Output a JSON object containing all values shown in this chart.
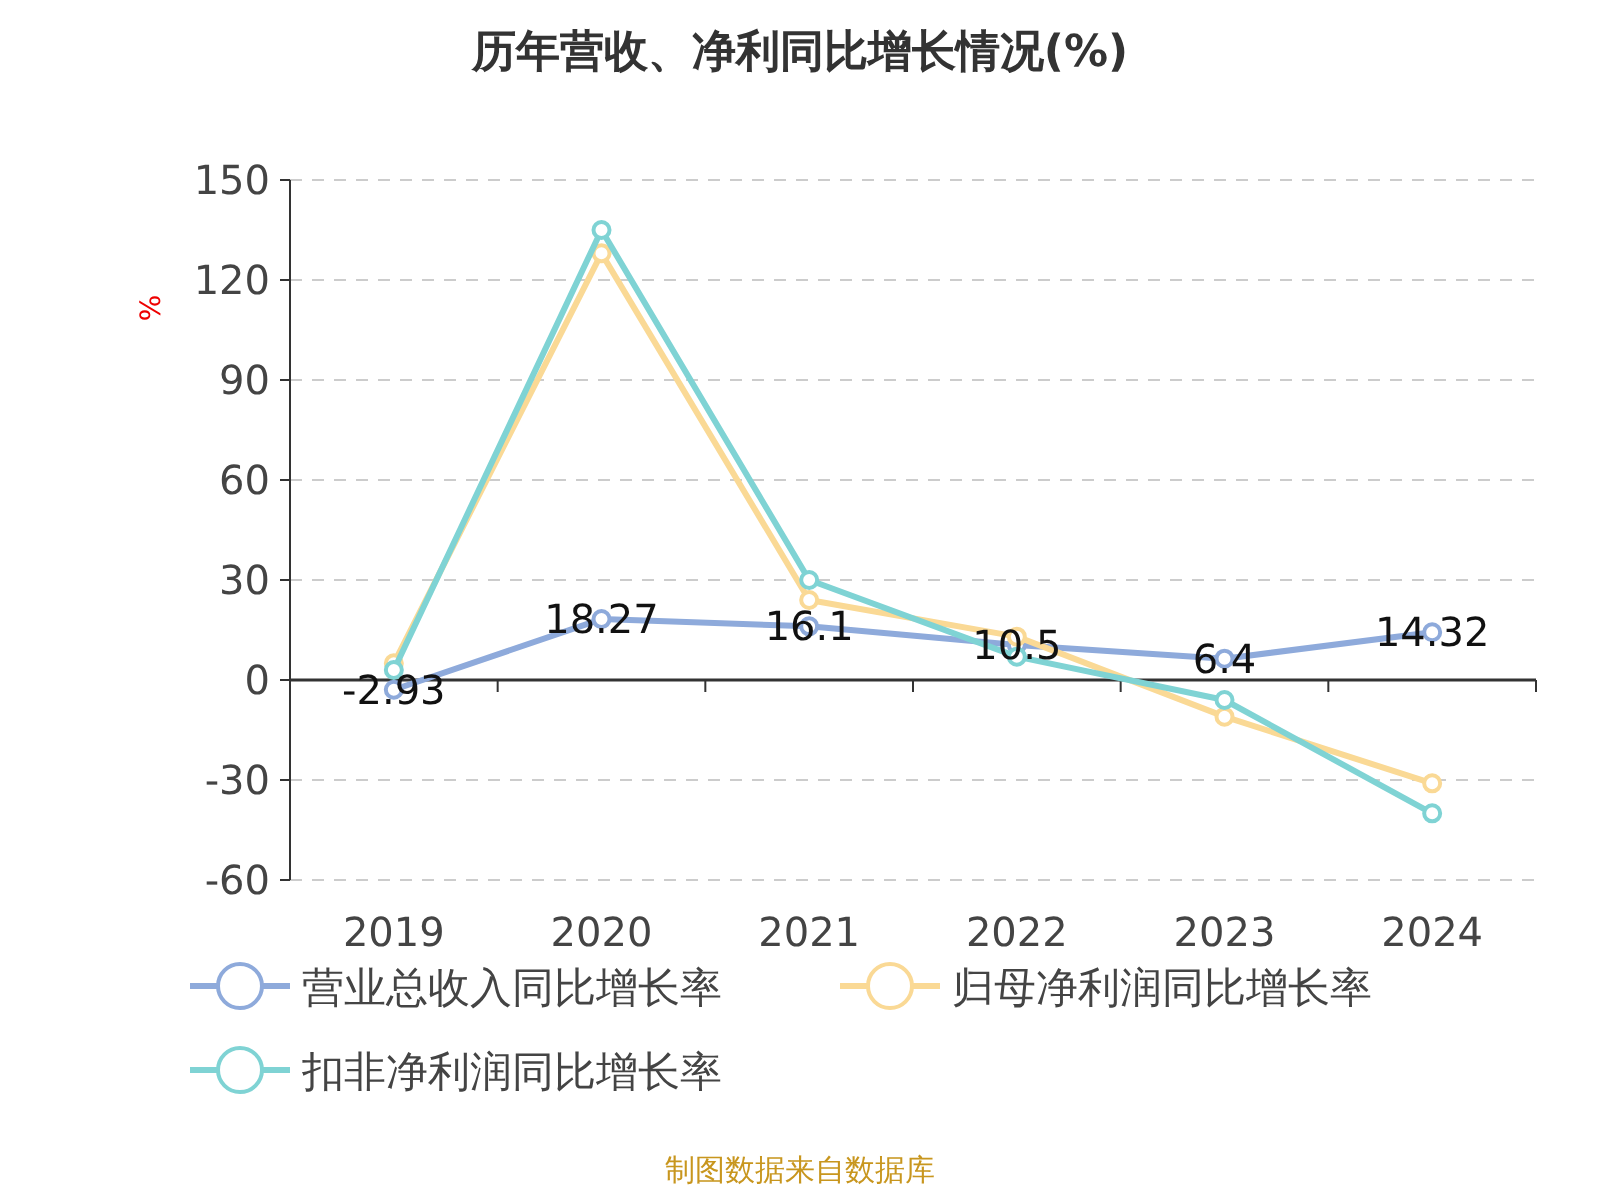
{
  "chart_data": {
    "type": "line",
    "title": "历年营收、净利同比增长情况(%)",
    "ylabel": "%",
    "categories": [
      "2019",
      "2020",
      "2021",
      "2022",
      "2023",
      "2024"
    ],
    "series": [
      {
        "name": "营业总收入同比增长率",
        "color": "#8eaadb",
        "values": [
          -2.93,
          18.27,
          16.1,
          10.5,
          6.4,
          14.32
        ],
        "value_labels": [
          "-2.93",
          "18.27",
          "16.1",
          "10.5",
          "6.4",
          "14.32"
        ]
      },
      {
        "name": "归母净利润同比增长率",
        "color": "#fad995",
        "values": [
          5,
          128,
          24,
          13,
          -11,
          -31
        ]
      },
      {
        "name": "扣非净利润同比增长率",
        "color": "#7fd3d4",
        "values": [
          3,
          135,
          30,
          7,
          -6,
          -40
        ]
      }
    ],
    "ylim": [
      -60,
      150
    ],
    "yticks": [
      -60,
      -30,
      0,
      30,
      60,
      90,
      120,
      150
    ],
    "grid": "y",
    "marker": "circle",
    "legend": "bottom",
    "annotations": [
      "制图数据来自数据库"
    ]
  }
}
